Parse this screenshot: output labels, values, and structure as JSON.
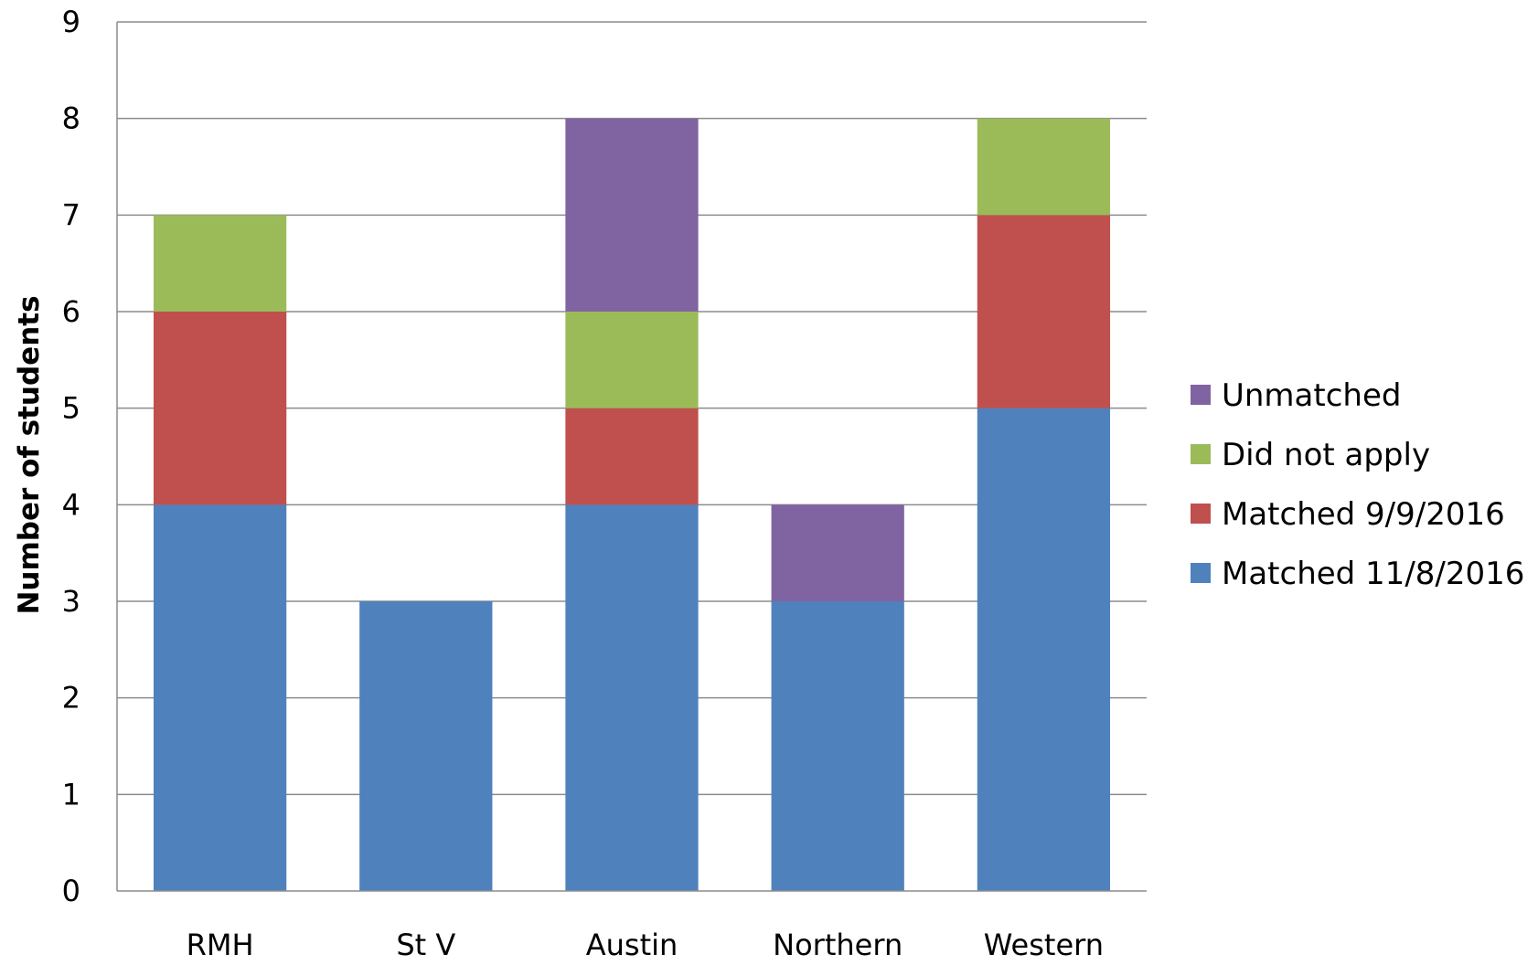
{
  "chart_data": {
    "type": "bar",
    "stacked": true,
    "title": "",
    "xlabel": "",
    "ylabel": "Number of students",
    "ylim": [
      0,
      9
    ],
    "yticks": [
      0,
      1,
      2,
      3,
      4,
      5,
      6,
      7,
      8,
      9
    ],
    "grid": true,
    "legend_position": "right",
    "categories": [
      "RMH",
      "St V",
      "Austin",
      "Northern",
      "Western"
    ],
    "series": [
      {
        "name": "Matched 11/8/2016",
        "color": "#4F81BD",
        "values": [
          4,
          3,
          4,
          3,
          5
        ]
      },
      {
        "name": "Matched 9/9/2016",
        "color": "#C0504D",
        "values": [
          2,
          0,
          1,
          0,
          2
        ]
      },
      {
        "name": "Did not apply",
        "color": "#9BBB59",
        "values": [
          1,
          0,
          1,
          0,
          1
        ]
      },
      {
        "name": "Unmatched",
        "color": "#8064A2",
        "values": [
          0,
          0,
          2,
          1,
          0
        ]
      }
    ],
    "legend_order": [
      "Unmatched",
      "Did not apply",
      "Matched 9/9/2016",
      "Matched 11/8/2016"
    ]
  }
}
